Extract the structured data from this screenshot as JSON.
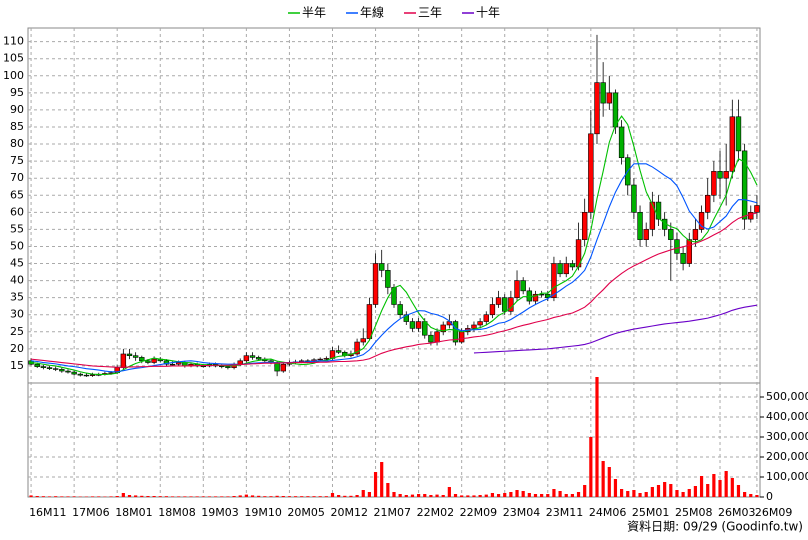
{
  "chart_data": {
    "type": "candlestick",
    "categories": [
      "16M11",
      null,
      null,
      null,
      null,
      null,
      null,
      "17M06",
      null,
      null,
      null,
      null,
      null,
      null,
      "18M01",
      null,
      null,
      null,
      null,
      null,
      null,
      "18M08",
      null,
      null,
      null,
      null,
      null,
      null,
      "19M03",
      null,
      null,
      null,
      null,
      null,
      null,
      "19M10",
      null,
      null,
      null,
      null,
      null,
      null,
      "20M05",
      null,
      null,
      null,
      null,
      null,
      null,
      "20M12",
      null,
      null,
      null,
      null,
      null,
      null,
      "21M07",
      null,
      null,
      null,
      null,
      null,
      null,
      "22M02",
      null,
      null,
      null,
      null,
      null,
      null,
      "22M09",
      null,
      null,
      null,
      null,
      null,
      null,
      "23M04",
      null,
      null,
      null,
      null,
      null,
      null,
      "23M11",
      null,
      null,
      null,
      null,
      null,
      null,
      "24M06",
      null,
      null,
      null,
      null,
      null,
      null,
      "25M01",
      null,
      null,
      null,
      null,
      null,
      null,
      "25M08",
      null,
      null,
      null,
      null,
      null,
      null,
      "26M03",
      null,
      null,
      null,
      null,
      null,
      "26M09"
    ],
    "open": [
      16.5,
      15.5,
      14.8,
      14.5,
      14.2,
      14.0,
      13.5,
      13.2,
      12.6,
      12.3,
      12.2,
      12.4,
      12.5,
      12.8,
      13.0,
      14.5,
      18.5,
      18.0,
      17.5,
      16.5,
      16.0,
      17.0,
      16.5,
      15.5,
      15.5,
      16.0,
      15.0,
      15.5,
      15.0,
      15.0,
      15.5,
      15.0,
      14.8,
      14.5,
      15.5,
      16.5,
      18.0,
      17.5,
      17.0,
      16.5,
      16.0,
      13.5,
      15.5,
      16.0,
      16.2,
      16.5,
      16.3,
      16.8,
      17.0,
      17.2,
      19.5,
      19.0,
      18.0,
      18.5,
      22.0,
      23.0,
      33.0,
      45.0,
      43.0,
      38.0,
      33.0,
      30.0,
      28.0,
      26.0,
      28.0,
      24.0,
      22.0,
      25.0,
      27.0,
      28.0,
      22.0,
      25.0,
      26.0,
      27.0,
      28.0,
      30.0,
      33.0,
      35.0,
      31.0,
      35.0,
      40.0,
      37.0,
      34.0,
      36.0,
      36.0,
      35.0,
      45.0,
      42.0,
      45.0,
      44.0,
      52.0,
      60.0,
      83.0,
      98.0,
      92.0,
      95.0,
      85.0,
      76.0,
      68.0,
      60.0,
      52.0,
      55.0,
      63.0,
      58.0,
      55.0,
      52.0,
      48.0,
      45.0,
      52.0,
      55.0,
      60.0,
      65.0,
      72.0,
      70.0,
      72.0,
      88.0,
      78.0,
      58.0,
      60.0
    ],
    "high": [
      17.2,
      16.0,
      15.3,
      15.0,
      14.8,
      14.5,
      14.0,
      13.6,
      13.0,
      12.8,
      13.0,
      13.0,
      13.3,
      13.5,
      15.2,
      20.0,
      20.0,
      19.0,
      18.0,
      17.0,
      17.8,
      17.6,
      17.0,
      16.3,
      16.6,
      16.5,
      16.0,
      16.0,
      15.6,
      16.0,
      16.0,
      15.5,
      15.2,
      16.0,
      17.2,
      19.0,
      19.0,
      18.0,
      17.5,
      17.0,
      16.5,
      16.0,
      16.6,
      16.8,
      17.0,
      17.0,
      17.3,
      17.5,
      17.8,
      20.5,
      21.0,
      19.5,
      19.5,
      23.0,
      26.0,
      35.0,
      48.0,
      49.0,
      45.0,
      39.0,
      34.0,
      31.0,
      29.0,
      29.0,
      29.0,
      25.0,
      26.0,
      28.0,
      30.0,
      28.5,
      26.0,
      27.0,
      28.0,
      29.0,
      31.0,
      35.0,
      37.0,
      36.0,
      37.0,
      43.0,
      41.0,
      38.0,
      37.0,
      37.0,
      37.0,
      47.0,
      46.0,
      47.0,
      46.0,
      57.0,
      64.0,
      90.0,
      112.0,
      104.0,
      100.0,
      96.0,
      87.0,
      77.0,
      70.0,
      62.0,
      57.0,
      66.0,
      65.0,
      60.0,
      57.0,
      54.0,
      50.0,
      54.0,
      58.0,
      62.0,
      70.0,
      75.0,
      78.0,
      80.0,
      93.0,
      93.0,
      80.0,
      62.0,
      65.0
    ],
    "low": [
      15.2,
      14.4,
      14.0,
      13.8,
      13.5,
      13.0,
      12.8,
      12.2,
      11.9,
      11.8,
      11.8,
      12.0,
      12.2,
      12.4,
      12.6,
      14.0,
      17.0,
      16.5,
      15.8,
      15.5,
      15.5,
      16.0,
      15.0,
      15.0,
      15.0,
      14.5,
      14.6,
      14.6,
      14.5,
      14.6,
      14.6,
      14.3,
      14.0,
      14.0,
      15.0,
      16.0,
      16.8,
      16.5,
      16.0,
      15.5,
      12.0,
      13.0,
      15.0,
      15.5,
      15.8,
      15.8,
      15.8,
      16.3,
      16.5,
      16.8,
      18.5,
      17.5,
      17.5,
      18.0,
      21.0,
      22.5,
      32.0,
      41.0,
      36.0,
      32.0,
      29.0,
      27.0,
      25.0,
      25.0,
      23.0,
      21.0,
      21.0,
      24.0,
      26.0,
      21.0,
      21.5,
      24.0,
      25.0,
      26.0,
      27.0,
      29.0,
      32.0,
      30.0,
      30.0,
      34.0,
      36.0,
      33.0,
      33.0,
      35.0,
      34.0,
      34.0,
      41.0,
      41.0,
      43.0,
      43.0,
      50.0,
      58.0,
      80.0,
      88.0,
      90.0,
      83.0,
      74.0,
      65.0,
      58.0,
      50.0,
      50.0,
      53.0,
      56.0,
      53.0,
      40.0,
      46.0,
      43.0,
      44.0,
      50.0,
      54.0,
      58.0,
      63.0,
      64.0,
      62.0,
      70.0,
      75.0,
      55.0,
      57.0,
      58.0
    ],
    "close": [
      15.5,
      14.8,
      14.5,
      14.2,
      14.0,
      13.5,
      13.2,
      12.6,
      12.3,
      12.2,
      12.4,
      12.5,
      12.8,
      13.0,
      14.5,
      18.5,
      18.0,
      17.5,
      16.5,
      16.0,
      17.0,
      16.5,
      15.5,
      15.5,
      16.0,
      15.0,
      15.5,
      15.0,
      15.0,
      15.5,
      15.0,
      14.8,
      14.5,
      15.5,
      16.5,
      18.0,
      17.5,
      17.0,
      16.5,
      16.0,
      13.5,
      15.5,
      16.0,
      16.2,
      16.5,
      16.3,
      16.8,
      17.0,
      17.2,
      19.5,
      19.0,
      18.0,
      18.5,
      22.0,
      23.0,
      33.0,
      45.0,
      43.0,
      38.0,
      33.0,
      30.0,
      28.0,
      26.0,
      28.0,
      24.0,
      22.0,
      25.0,
      27.0,
      28.0,
      22.0,
      25.0,
      26.0,
      27.0,
      28.0,
      30.0,
      33.0,
      35.0,
      31.0,
      35.0,
      40.0,
      37.0,
      34.0,
      36.0,
      36.0,
      35.0,
      45.0,
      42.0,
      45.0,
      44.0,
      52.0,
      60.0,
      83.0,
      98.0,
      92.0,
      95.0,
      85.0,
      76.0,
      68.0,
      60.0,
      52.0,
      55.0,
      63.0,
      58.0,
      55.0,
      52.0,
      48.0,
      45.0,
      52.0,
      55.0,
      60.0,
      65.0,
      72.0,
      70.0,
      72.0,
      88.0,
      78.0,
      58.0,
      60.0,
      62.0
    ],
    "up_color": "#ff0000",
    "down_color": "#00b000",
    "series": [
      {
        "name": "半年",
        "color": "#00c000",
        "values": [
          16.0,
          15.8,
          15.5,
          15.2,
          15.0,
          14.6,
          14.2,
          13.8,
          13.3,
          12.9,
          12.6,
          12.5,
          12.5,
          12.6,
          12.9,
          13.9,
          14.9,
          15.7,
          16.3,
          16.8,
          17.3,
          17.0,
          16.8,
          16.5,
          16.2,
          16.0,
          15.9,
          15.6,
          15.4,
          15.3,
          15.2,
          15.1,
          15.0,
          15.1,
          15.3,
          15.8,
          16.3,
          16.6,
          16.9,
          17.0,
          16.4,
          16.1,
          15.8,
          15.6,
          15.4,
          15.5,
          15.8,
          16.5,
          16.6,
          17.3,
          17.8,
          18.0,
          18.4,
          19.1,
          20.1,
          22.5,
          26.8,
          31.2,
          35.0,
          37.9,
          38.6,
          36.6,
          33.5,
          30.5,
          28.2,
          26.3,
          25.5,
          25.3,
          25.7,
          25.5,
          25.0,
          25.3,
          25.8,
          26.2,
          27.0,
          28.2,
          29.8,
          30.7,
          32.0,
          34.0,
          35.3,
          35.3,
          35.5,
          36.3,
          36.3,
          38.0,
          39.0,
          40.0,
          41.3,
          44.2,
          48.0,
          54.7,
          64.0,
          72.0,
          80.5,
          85.5,
          88.2,
          85.7,
          79.3,
          72.3,
          66.0,
          62.3,
          58.3,
          56.8,
          55.8,
          55.2,
          53.2,
          51.7,
          51.3,
          52.0,
          54.2,
          58.0,
          61.5,
          65.0,
          71.2,
          75.7,
          74.7,
          71.7,
          68.0
        ]
      },
      {
        "name": "年線",
        "color": "#0055ff",
        "values": [
          16.5,
          16.3,
          16.0,
          15.8,
          15.6,
          15.3,
          15.0,
          14.8,
          14.5,
          14.2,
          14.0,
          13.8,
          13.5,
          13.3,
          13.3,
          13.6,
          14.0,
          14.3,
          14.5,
          14.8,
          15.1,
          15.4,
          15.7,
          16.0,
          16.2,
          16.4,
          16.5,
          16.3,
          16.0,
          15.8,
          15.7,
          15.6,
          15.5,
          15.5,
          15.4,
          15.6,
          15.8,
          15.9,
          16.0,
          16.1,
          15.9,
          15.9,
          16.0,
          16.1,
          16.1,
          16.2,
          16.4,
          16.5,
          16.4,
          16.6,
          16.8,
          17.0,
          17.2,
          17.7,
          18.3,
          19.7,
          22.0,
          24.0,
          25.8,
          27.4,
          28.8,
          29.8,
          30.5,
          31.2,
          31.1,
          30.4,
          30.0,
          29.3,
          28.2,
          26.0,
          25.3,
          25.5,
          25.6,
          25.7,
          26.0,
          26.7,
          27.5,
          27.8,
          28.6,
          29.7,
          30.8,
          32.0,
          33.0,
          33.9,
          34.7,
          35.9,
          37.1,
          38.4,
          39.5,
          41.1,
          43.0,
          46.9,
          52.0,
          56.7,
          61.6,
          65.9,
          69.3,
          72.1,
          74.2,
          74.2,
          74.2,
          73.3,
          72.1,
          70.8,
          69.7,
          67.8,
          64.3,
          60.4,
          58.1,
          55.9,
          55.1,
          55.7,
          57.3,
          58.9,
          61.7,
          63.7,
          63.7,
          63.3,
          62.8
        ]
      },
      {
        "name": "三年",
        "color": "#e0004a",
        "values": [
          17.0,
          16.8,
          16.6,
          16.4,
          16.2,
          16.0,
          15.8,
          15.6,
          15.4,
          15.2,
          15.0,
          14.9,
          14.8,
          14.7,
          14.6,
          14.6,
          14.7,
          14.7,
          14.8,
          14.8,
          14.9,
          14.9,
          14.9,
          15.0,
          15.0,
          15.0,
          15.0,
          15.1,
          15.1,
          15.1,
          15.2,
          15.2,
          15.2,
          15.3,
          15.4,
          15.5,
          15.6,
          15.7,
          15.8,
          15.8,
          15.8,
          15.9,
          15.9,
          16.0,
          16.0,
          16.0,
          16.0,
          16.1,
          16.1,
          16.2,
          16.3,
          16.3,
          16.4,
          16.5,
          16.7,
          17.1,
          17.9,
          18.7,
          19.3,
          19.8,
          20.2,
          20.6,
          20.9,
          21.3,
          21.5,
          21.7,
          22.0,
          22.3,
          22.6,
          22.7,
          23.0,
          23.2,
          23.5,
          23.7,
          24.0,
          24.4,
          24.9,
          25.3,
          25.8,
          26.4,
          26.9,
          27.3,
          27.8,
          28.2,
          28.6,
          29.2,
          29.6,
          30.1,
          30.5,
          31.3,
          32.2,
          33.7,
          35.6,
          37.3,
          39.2,
          40.7,
          42.1,
          43.3,
          44.3,
          45.2,
          46.1,
          47.0,
          47.8,
          48.4,
          49.0,
          49.5,
          49.9,
          50.4,
          50.9,
          51.6,
          52.4,
          53.4,
          54.3,
          55.5,
          57.0,
          58.2,
          58.9,
          59.4,
          59.8
        ]
      },
      {
        "name": "十年",
        "color": "#6a00c8",
        "values": [
          null,
          null,
          null,
          null,
          null,
          null,
          null,
          null,
          null,
          null,
          null,
          null,
          null,
          null,
          null,
          null,
          null,
          null,
          null,
          null,
          null,
          null,
          null,
          null,
          null,
          null,
          null,
          null,
          null,
          null,
          null,
          null,
          null,
          null,
          null,
          null,
          null,
          null,
          null,
          null,
          null,
          null,
          null,
          null,
          null,
          null,
          null,
          null,
          null,
          null,
          null,
          null,
          null,
          null,
          null,
          null,
          null,
          null,
          null,
          null,
          null,
          null,
          null,
          null,
          null,
          null,
          null,
          null,
          null,
          null,
          null,
          null,
          18.8,
          18.9,
          19.0,
          19.1,
          19.2,
          19.3,
          19.4,
          19.5,
          19.6,
          19.7,
          19.8,
          19.9,
          20.0,
          20.2,
          20.4,
          20.6,
          20.8,
          21.0,
          21.3,
          21.8,
          22.5,
          23.2,
          23.9,
          24.5,
          25.0,
          25.4,
          25.8,
          26.1,
          26.4,
          26.7,
          27.0,
          27.3,
          27.5,
          27.7,
          27.9,
          28.1,
          28.4,
          28.7,
          29.0,
          29.5,
          30.0,
          30.6,
          31.3,
          31.8,
          32.2,
          32.5,
          32.8
        ]
      }
    ],
    "ylim": [
      10,
      114
    ],
    "yticks": [
      15,
      20,
      25,
      30,
      35,
      40,
      45,
      50,
      55,
      60,
      65,
      70,
      75,
      80,
      85,
      90,
      95,
      100,
      105,
      110
    ],
    "grid": true,
    "legend": "top",
    "volume": {
      "color": "#ff0000",
      "values": [
        8000,
        5000,
        4000,
        3000,
        4000,
        3000,
        3000,
        3000,
        2000,
        2000,
        3000,
        3000,
        2000,
        3000,
        5000,
        20000,
        10000,
        8000,
        6000,
        5000,
        5000,
        4000,
        4000,
        3000,
        3000,
        3000,
        3000,
        3000,
        3000,
        3000,
        3000,
        3000,
        3000,
        5000,
        8000,
        12000,
        8000,
        6000,
        4000,
        4000,
        6000,
        5000,
        4000,
        4000,
        4000,
        4000,
        4000,
        4000,
        4000,
        20000,
        10000,
        6000,
        6000,
        10000,
        35000,
        25000,
        125000,
        175000,
        70000,
        25000,
        15000,
        10000,
        12000,
        15000,
        15000,
        10000,
        12000,
        10000,
        50000,
        15000,
        8000,
        8000,
        8000,
        10000,
        12000,
        20000,
        15000,
        20000,
        25000,
        35000,
        30000,
        20000,
        15000,
        15000,
        15000,
        40000,
        30000,
        15000,
        15000,
        25000,
        60000,
        300000,
        600000,
        180000,
        150000,
        90000,
        40000,
        30000,
        35000,
        20000,
        25000,
        50000,
        60000,
        75000,
        65000,
        35000,
        25000,
        40000,
        55000,
        105000,
        65000,
        115000,
        85000,
        130000,
        95000,
        60000,
        25000,
        15000,
        10000
      ],
      "ylim": [
        0,
        570000
      ],
      "yticks": [
        0,
        {
          "value": 100000,
          "label": "100,000"
        },
        {
          "value": 200000,
          "label": "200,000"
        },
        {
          "value": 300000,
          "label": "300,000"
        },
        {
          "value": 400000,
          "label": "400,000"
        },
        {
          "value": 500000,
          "label": "500,000"
        }
      ]
    },
    "footnote": "資料日期: 09/29  (Goodinfo.tw)"
  }
}
